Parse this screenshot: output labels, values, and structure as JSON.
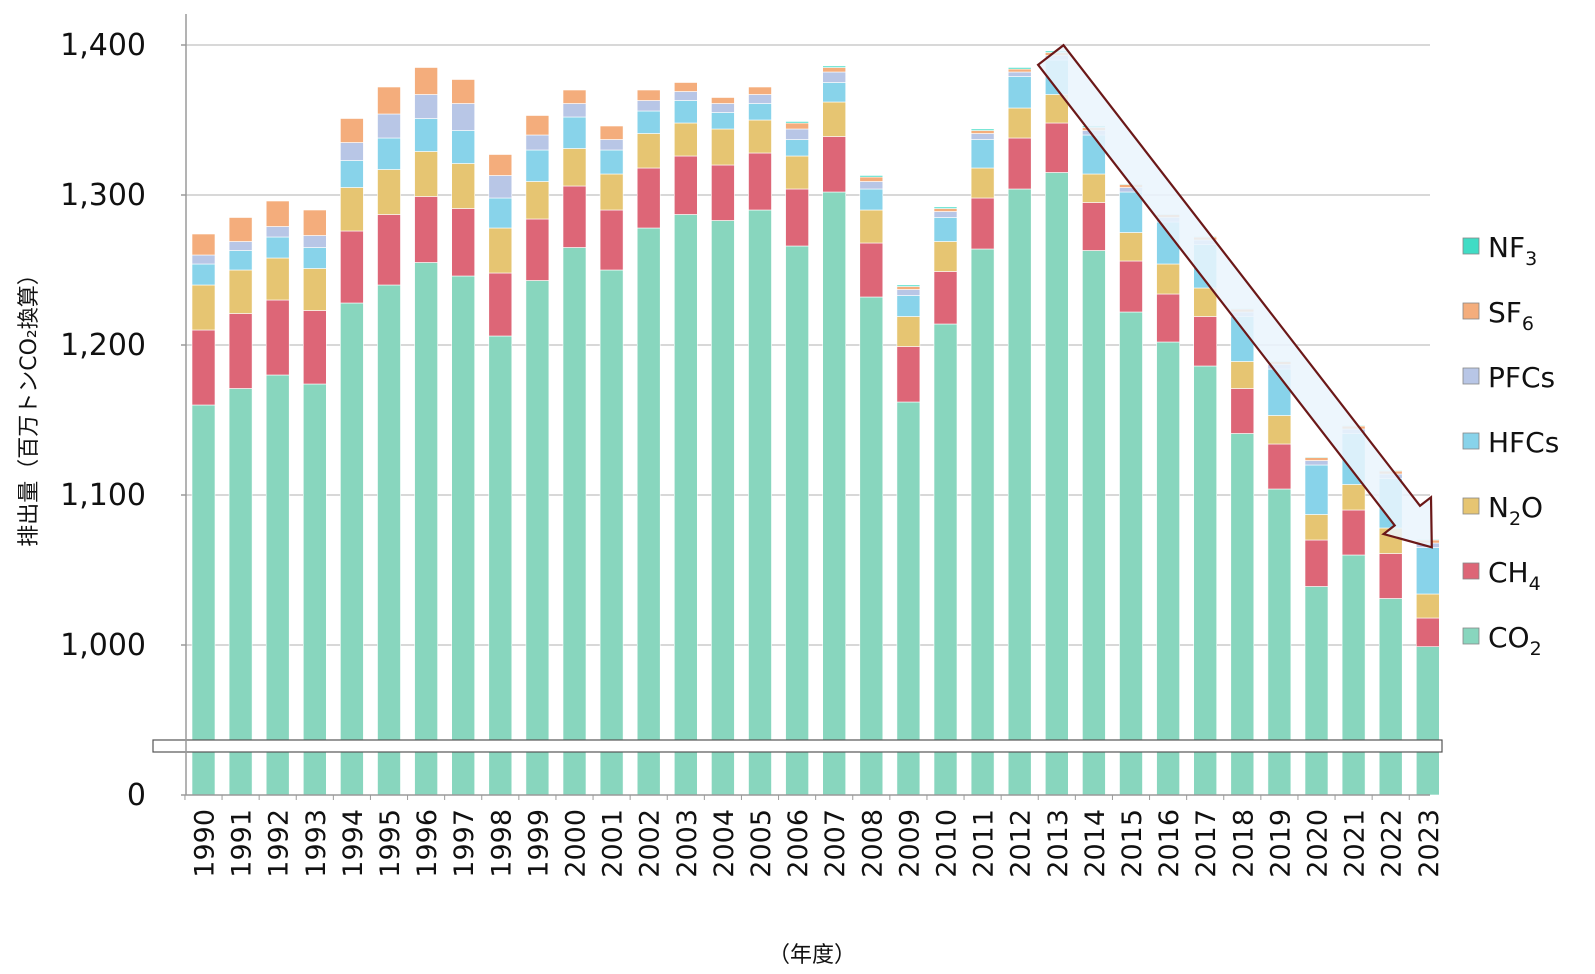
{
  "chart_data": {
    "type": "bar",
    "stacked": true,
    "xlabel": "（年度）",
    "ylabel": "排出量（百万トンCO₂換算）",
    "ylim": [
      0,
      1400
    ],
    "axis_break": {
      "from": 0,
      "to": 900
    },
    "yticks": [
      "0",
      "1,000",
      "1,100",
      "1,200",
      "1,300",
      "1,400"
    ],
    "ytick_values": [
      0,
      1000,
      1100,
      1200,
      1300,
      1400
    ],
    "grid": true,
    "legend_position": "right",
    "trend_arrow": {
      "from_category": "2013",
      "to_category": "2023"
    },
    "categories": [
      "1990",
      "1991",
      "1992",
      "1993",
      "1994",
      "1995",
      "1996",
      "1997",
      "1998",
      "1999",
      "2000",
      "2001",
      "2002",
      "2003",
      "2004",
      "2005",
      "2006",
      "2007",
      "2008",
      "2009",
      "2010",
      "2011",
      "2012",
      "2013",
      "2014",
      "2015",
      "2016",
      "2017",
      "2018",
      "2019",
      "2020",
      "2021",
      "2022",
      "2023"
    ],
    "series": [
      {
        "name": "CO₂",
        "legend_base": "CO",
        "legend_sub": "2",
        "color": "#88d6be",
        "values": [
          1160,
          1171,
          1180,
          1174,
          1228,
          1240,
          1255,
          1246,
          1206,
          1243,
          1265,
          1250,
          1278,
          1287,
          1283,
          1290,
          1266,
          1302,
          1232,
          1162,
          1214,
          1264,
          1304,
          1315,
          1263,
          1222,
          1202,
          1186,
          1141,
          1104,
          1039,
          1060,
          1031,
          989
        ]
      },
      {
        "name": "CH₄",
        "legend_base": "CH",
        "legend_sub": "4",
        "color": "#dd6677",
        "values": [
          50,
          50,
          50,
          49,
          48,
          47,
          44,
          45,
          42,
          41,
          41,
          40,
          40,
          39,
          37,
          38,
          38,
          37,
          36,
          37,
          35,
          34,
          34,
          33,
          32,
          34,
          32,
          33,
          30,
          30,
          31,
          30,
          30,
          29
        ]
      },
      {
        "name": "N₂O",
        "legend_base": "N",
        "legend_sub": "2",
        "legend_tail": "O",
        "color": "#e6c572",
        "values": [
          30,
          29,
          28,
          28,
          29,
          30,
          30,
          30,
          30,
          25,
          25,
          24,
          23,
          22,
          24,
          22,
          22,
          23,
          22,
          20,
          20,
          20,
          20,
          19,
          19,
          19,
          20,
          19,
          18,
          19,
          17,
          17,
          17,
          16
        ]
      },
      {
        "name": "HFCs",
        "legend_base": "HFCs",
        "color": "#88d3ea",
        "values": [
          14,
          13,
          14,
          14,
          18,
          21,
          22,
          22,
          20,
          21,
          21,
          16,
          15,
          15,
          11,
          11,
          11,
          13,
          14,
          14,
          16,
          19,
          21,
          23,
          26,
          27,
          28,
          29,
          30,
          31,
          33,
          34,
          33,
          31
        ]
      },
      {
        "name": "PFCs",
        "legend_base": "PFCs",
        "color": "#b8c6e6",
        "values": [
          6,
          6,
          7,
          8,
          12,
          16,
          16,
          18,
          15,
          10,
          9,
          7,
          7,
          6,
          6,
          6,
          7,
          7,
          5,
          4,
          4,
          4,
          3,
          3,
          3,
          3,
          3,
          3,
          3,
          3,
          3,
          3,
          3,
          3
        ]
      },
      {
        "name": "SF₆",
        "legend_base": "SF",
        "legend_sub": "6",
        "color": "#f4ad7c",
        "values": [
          14,
          16,
          17,
          17,
          16,
          18,
          18,
          16,
          14,
          13,
          9,
          9,
          7,
          6,
          4,
          5,
          4,
          3,
          3,
          2,
          2,
          2,
          2,
          2,
          2,
          2,
          2,
          2,
          2,
          2,
          2,
          2,
          2,
          2
        ]
      },
      {
        "name": "NF₃",
        "legend_base": "NF",
        "legend_sub": "3",
        "color": "#40dcc5",
        "values": [
          0,
          0,
          0,
          0,
          0,
          0,
          0,
          0,
          0,
          0,
          0,
          0,
          0,
          0,
          0,
          0,
          1,
          1,
          1,
          1,
          1,
          1,
          1,
          1,
          1,
          0.5,
          0.5,
          0.5,
          0.5,
          0.5,
          0.5,
          0.5,
          0.5,
          0.5
        ]
      }
    ]
  }
}
